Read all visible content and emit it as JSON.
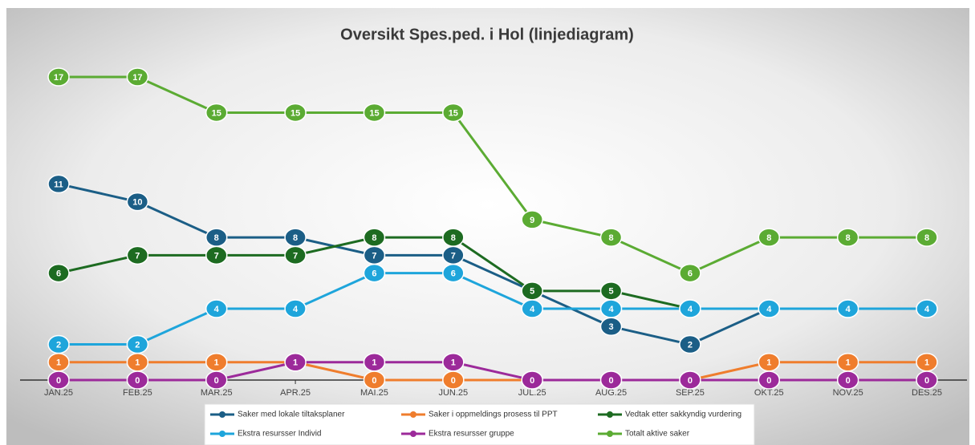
{
  "chart_data": {
    "type": "line",
    "title": "Oversikt Spes.ped. i Hol (linjediagram)",
    "categories": [
      "JAN.25",
      "FEB.25",
      "MAR.25",
      "APR.25",
      "MAI.25",
      "JUN.25",
      "JUL.25",
      "AUG.25",
      "SEP.25",
      "OKT.25",
      "NOV.25",
      "DES.25"
    ],
    "ylim": [
      0,
      17
    ],
    "series": [
      {
        "name": "Saker med lokale tiltaksplaner",
        "color": "#1b5e86",
        "values": [
          11,
          10,
          8,
          8,
          7,
          7,
          5,
          3,
          2,
          4,
          4,
          4
        ]
      },
      {
        "name": "Saker i oppmeldings prosess til PPT",
        "color": "#ef7d2d",
        "values": [
          1,
          1,
          1,
          1,
          0,
          0,
          0,
          0,
          0,
          1,
          1,
          1
        ]
      },
      {
        "name": "Vedtak etter sakkyndig vurdering",
        "color": "#1d6b21",
        "values": [
          6,
          7,
          7,
          7,
          8,
          8,
          5,
          5,
          4,
          4,
          4,
          4
        ]
      },
      {
        "name": "Ekstra resursser Individ",
        "color": "#1ea5db",
        "values": [
          2,
          2,
          4,
          4,
          6,
          6,
          4,
          4,
          4,
          4,
          4,
          4
        ]
      },
      {
        "name": "Ekstra resursser gruppe",
        "color": "#9c2a9a",
        "values": [
          0,
          0,
          0,
          1,
          1,
          1,
          0,
          0,
          0,
          0,
          0,
          0
        ]
      },
      {
        "name": "Totalt aktive saker",
        "color": "#5bab33",
        "values": [
          17,
          17,
          15,
          15,
          15,
          15,
          9,
          8,
          6,
          8,
          8,
          8
        ]
      }
    ]
  }
}
